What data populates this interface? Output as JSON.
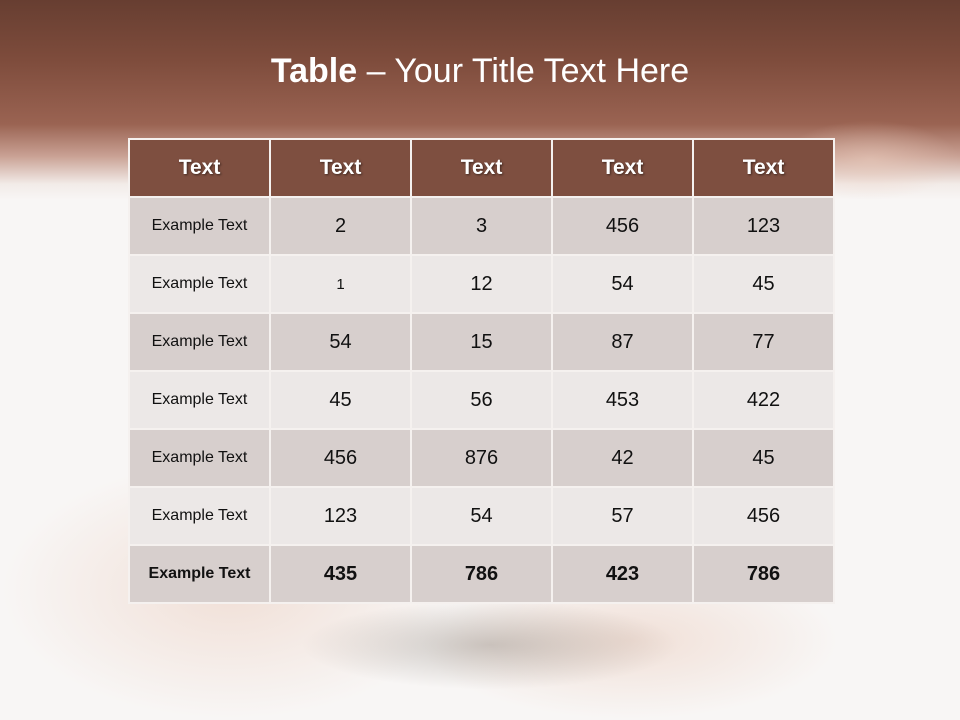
{
  "slide": {
    "title_bold": "Table",
    "title_rest": " – Your Title Text Here"
  },
  "table": {
    "headers": [
      "Text",
      "Text",
      "Text",
      "Text",
      "Text"
    ],
    "rows": [
      [
        "Example Text",
        "2",
        "3",
        "456",
        "123"
      ],
      [
        "Example Text",
        "1",
        "12",
        "54",
        "45"
      ],
      [
        "Example Text",
        "54",
        "15",
        "87",
        "77"
      ],
      [
        "Example Text",
        "45",
        "56",
        "453",
        "422"
      ],
      [
        "Example Text",
        "456",
        "876",
        "42",
        "45"
      ],
      [
        "Example Text",
        "123",
        "54",
        "57",
        "456"
      ],
      [
        "Example Text",
        "435",
        "786",
        "423",
        "786"
      ]
    ]
  },
  "colors": {
    "header_bg": "#7e4f40",
    "row_dark": "#d7cfcd",
    "row_light": "#ece8e7",
    "title_band": "#7e4c3c"
  }
}
